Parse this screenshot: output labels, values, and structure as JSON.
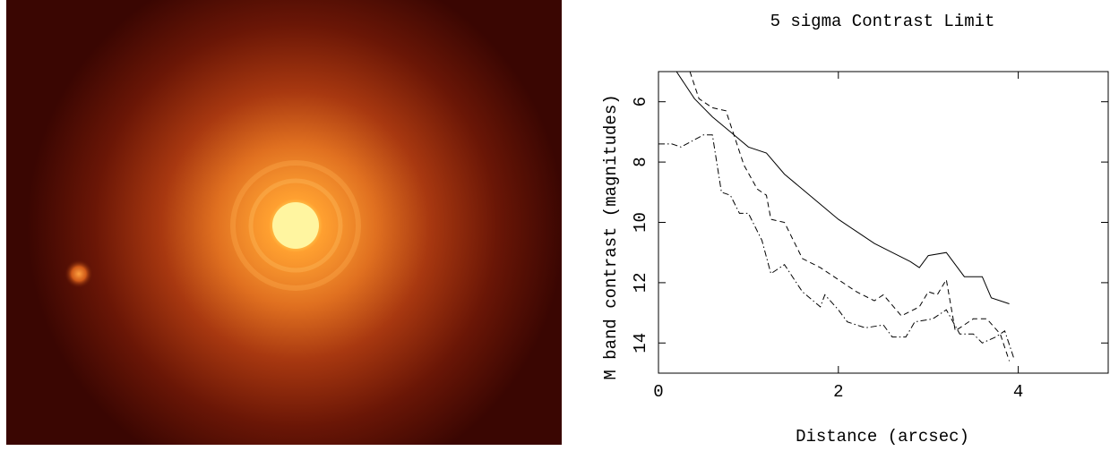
{
  "chart_data": {
    "type": "line",
    "title": "5 sigma Contrast Limit",
    "x_label": "Distance (arcsec)",
    "y_label": "M band contrast (magnitudes)",
    "xlim": [
      0,
      5
    ],
    "xticks": [
      0,
      2,
      4
    ],
    "ylim": [
      15,
      5
    ],
    "yticks": [
      6,
      8,
      10,
      12,
      14
    ],
    "series": [
      {
        "color": "#000000",
        "dash": "solid",
        "x": [
          0.2,
          0.4,
          0.6,
          0.8,
          1.0,
          1.2,
          1.4,
          1.6,
          1.8,
          2.0,
          2.2,
          2.4,
          2.6,
          2.8,
          2.9,
          3.0,
          3.2,
          3.4,
          3.6,
          3.7,
          3.9
        ],
        "values": [
          5.0,
          5.9,
          6.5,
          7.0,
          7.5,
          7.7,
          8.4,
          8.9,
          9.4,
          9.9,
          10.3,
          10.7,
          11.0,
          11.3,
          11.5,
          11.1,
          11.0,
          11.8,
          11.8,
          12.5,
          12.7
        ]
      },
      {
        "color": "#000000",
        "dash": "dashed",
        "x": [
          0.35,
          0.45,
          0.6,
          0.75,
          0.85,
          0.95,
          1.1,
          1.2,
          1.25,
          1.4,
          1.6,
          1.8,
          2.0,
          2.2,
          2.4,
          2.5,
          2.7,
          2.9,
          3.0,
          3.1,
          3.2,
          3.3,
          3.5,
          3.65,
          3.8,
          3.9
        ],
        "values": [
          5.0,
          5.9,
          6.2,
          6.3,
          7.2,
          8.1,
          8.9,
          9.1,
          9.9,
          10.0,
          11.2,
          11.5,
          11.9,
          12.3,
          12.6,
          12.4,
          13.1,
          12.8,
          12.3,
          12.4,
          11.9,
          13.6,
          13.2,
          13.2,
          13.7,
          14.6
        ]
      },
      {
        "color": "#000000",
        "dash": "dashdot",
        "x": [
          0,
          0.15,
          0.25,
          0.5,
          0.6,
          0.7,
          0.8,
          0.9,
          1.0,
          1.15,
          1.25,
          1.4,
          1.6,
          1.8,
          1.85,
          2.0,
          2.1,
          2.3,
          2.5,
          2.6,
          2.75,
          2.85,
          3.05,
          3.2,
          3.35,
          3.5,
          3.6,
          3.75,
          3.85,
          3.95
        ],
        "values": [
          7.4,
          7.4,
          7.5,
          7.1,
          7.1,
          9.0,
          9.1,
          9.7,
          9.7,
          10.6,
          11.7,
          11.4,
          12.3,
          12.8,
          12.4,
          12.9,
          13.3,
          13.5,
          13.4,
          13.8,
          13.8,
          13.3,
          13.2,
          12.9,
          13.7,
          13.7,
          14.0,
          13.8,
          13.6,
          14.5
        ]
      }
    ]
  }
}
